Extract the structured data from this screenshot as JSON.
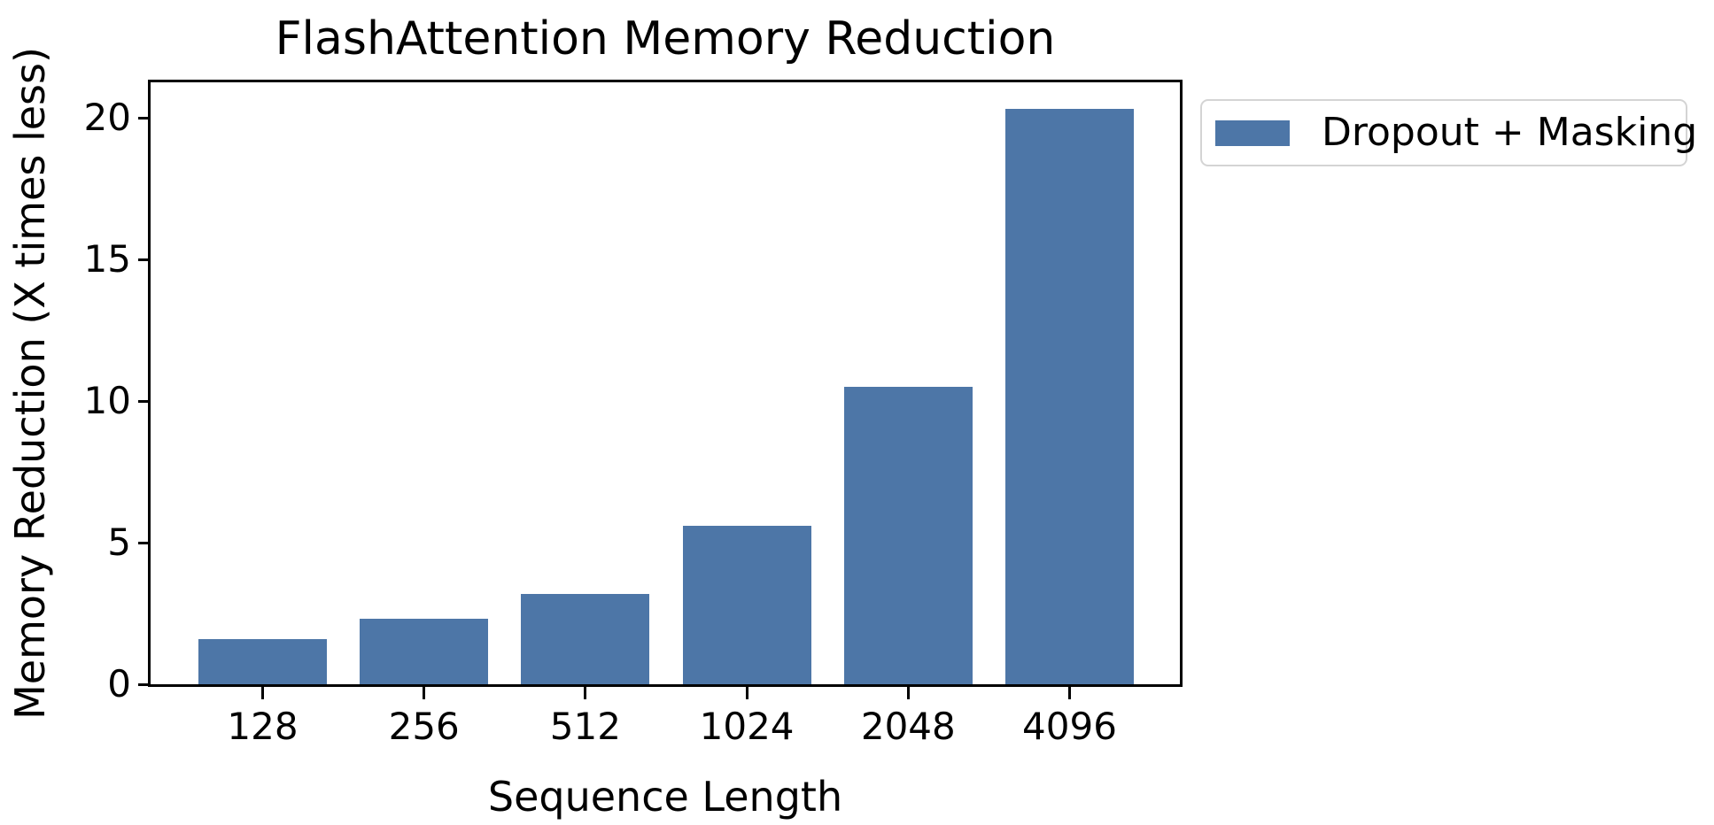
{
  "chart_data": {
    "type": "bar",
    "title": "FlashAttention Memory Reduction",
    "xlabel": "Sequence Length",
    "ylabel": "Memory Reduction (X times less)",
    "categories": [
      "128",
      "256",
      "512",
      "1024",
      "2048",
      "4096"
    ],
    "series": [
      {
        "name": "Dropout + Masking",
        "values": [
          1.6,
          2.3,
          3.2,
          5.6,
          10.5,
          20.3
        ]
      }
    ],
    "yticks": [
      0,
      5,
      10,
      15,
      20
    ],
    "ylim": [
      0,
      21.25
    ],
    "grid": false,
    "bar_color": "#4d76a7",
    "legend_position": "outside-upper-right"
  },
  "legend": {
    "entries": [
      {
        "label": "Dropout + Masking",
        "color": "#4d76a7"
      }
    ]
  }
}
